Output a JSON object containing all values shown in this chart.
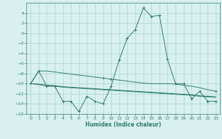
{
  "xlabel": "Humidex (Indice chaleur)",
  "x": [
    0,
    1,
    2,
    3,
    4,
    5,
    6,
    7,
    8,
    9,
    10,
    11,
    12,
    13,
    14,
    15,
    16,
    17,
    18,
    19,
    20,
    21,
    22,
    23
  ],
  "line_main": [
    -10,
    -7.5,
    -10.5,
    -10.5,
    -13.5,
    -13.5,
    -15.5,
    -12.5,
    -13.5,
    -14.0,
    -10.5,
    -5.3,
    -1.0,
    0.7,
    5.0,
    3.3,
    3.5,
    -5.2,
    -10.0,
    -10.0,
    -13.0,
    -11.5,
    -13.5,
    -13.5
  ],
  "line_smooth_x": [
    0,
    1,
    2,
    3,
    4,
    5,
    6,
    7,
    8,
    9,
    10,
    11,
    12,
    13,
    14,
    15,
    16,
    17,
    18,
    19,
    20,
    21,
    22,
    23
  ],
  "line_smooth": [
    -10,
    -7.5,
    -7.5,
    -7.7,
    -7.9,
    -8.1,
    -8.3,
    -8.5,
    -8.7,
    -8.9,
    -9.1,
    -9.3,
    -9.5,
    -9.7,
    -9.9,
    -10.0,
    -10.0,
    -10.0,
    -10.1,
    -10.3,
    -10.5,
    -10.8,
    -11.2,
    -11.5
  ],
  "line_flat1": [
    -10,
    -10.2,
    -10.4,
    -10.5,
    -10.7,
    -10.8,
    -10.9,
    -11.0,
    -11.1,
    -11.2,
    -11.3,
    -11.4,
    -11.5,
    -11.6,
    -11.7,
    -11.8,
    -11.9,
    -12.0,
    -12.1,
    -12.2,
    -12.3,
    -12.5,
    -12.6,
    -12.7
  ],
  "line_flat2": [
    -10,
    -10.1,
    -10.3,
    -10.4,
    -10.6,
    -10.7,
    -10.8,
    -10.9,
    -11.0,
    -11.1,
    -11.2,
    -11.3,
    -11.4,
    -11.5,
    -11.6,
    -11.7,
    -11.8,
    -11.9,
    -12.0,
    -12.1,
    -12.2,
    -12.4,
    -12.5,
    -12.6
  ],
  "color": "#2d7b6f",
  "bg_color": "#d8f0ee",
  "grid_color": "#aad4ce",
  "ylim": [
    -16,
    6
  ],
  "yticks": [
    -16,
    -14,
    -12,
    -10,
    -8,
    -6,
    -4,
    -2,
    0,
    2,
    4
  ],
  "xticks": [
    0,
    1,
    2,
    3,
    4,
    5,
    6,
    7,
    8,
    9,
    10,
    11,
    12,
    13,
    14,
    15,
    16,
    17,
    18,
    19,
    20,
    21,
    22,
    23
  ]
}
